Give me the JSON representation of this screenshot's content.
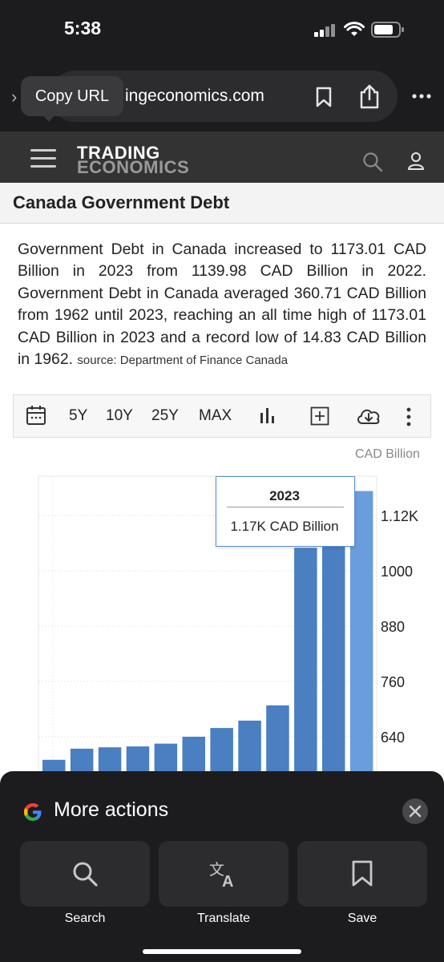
{
  "status_bar": {
    "time": "5:38"
  },
  "browser": {
    "url": "ingeconomics.com",
    "tooltip": "Copy URL"
  },
  "site": {
    "logo_line1": "TRADING",
    "logo_line2": "ECONOMICS"
  },
  "page": {
    "title": "Canada Government Debt",
    "description": "Government Debt in Canada increased to 1173.01 CAD Billion in 2023 from 1139.98 CAD Billion in 2022. Government Debt in Canada averaged 360.71 CAD Billion from 1962 until 2023, reaching an all time high of 1173.01 CAD Billion in 2023 and a record low of 14.83 CAD Billion in 1962.",
    "source": "source: Department of Finance Canada"
  },
  "chart_toolbar": {
    "ranges": [
      "5Y",
      "10Y",
      "25Y",
      "MAX"
    ]
  },
  "chart_data": {
    "type": "bar",
    "ylabel": "CAD Billion",
    "y_ticks": [
      "1.12K",
      "1000",
      "880",
      "760",
      "640"
    ],
    "ylim": [
      520,
      1200
    ],
    "values": [
      590,
      614,
      617,
      619,
      625,
      640,
      659,
      675,
      708,
      1050,
      1140,
      1173.01
    ],
    "bar_color": "#4a7fc1",
    "highlight_color": "#6a9ddb",
    "tooltip": {
      "year": "2023",
      "value": "1.17K CAD Billion"
    }
  },
  "bottom_sheet": {
    "title": "More actions",
    "actions": [
      {
        "label": "Search"
      },
      {
        "label": "Translate"
      },
      {
        "label": "Save"
      }
    ]
  }
}
